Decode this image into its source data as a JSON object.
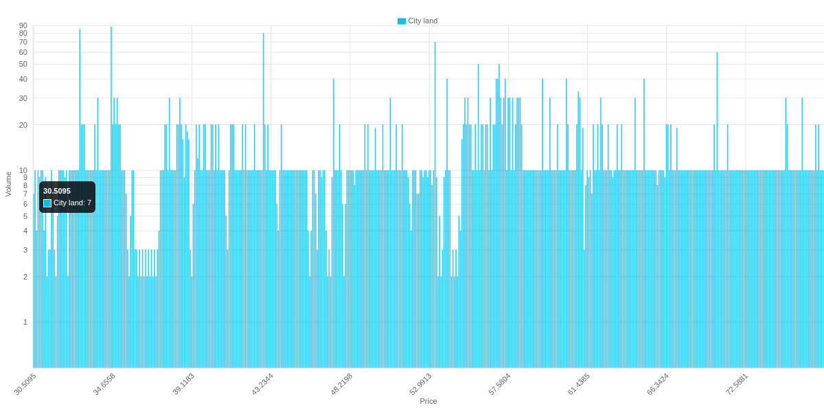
{
  "chart_data": {
    "type": "bar",
    "xlabel": "Price",
    "ylabel": "Volume",
    "log": "y",
    "grid": true,
    "legend": "top",
    "ylim": [
      0.5,
      90
    ],
    "yticks": [
      1,
      2,
      3,
      4,
      5,
      6,
      7,
      8,
      9,
      10,
      20,
      30,
      40,
      50,
      60,
      70,
      80,
      90
    ],
    "annotations": [
      {
        "text": "30.5095",
        "x": "30.5095",
        "y": 7
      },
      "City land: 7"
    ],
    "categories": [
      "30.5095",
      null,
      null,
      null,
      null,
      null,
      null,
      null,
      null,
      null,
      null,
      null,
      null,
      null,
      null,
      null,
      null,
      null,
      null,
      null,
      null,
      null,
      null,
      null,
      null,
      null,
      null,
      null,
      null,
      null,
      null,
      null,
      null,
      null,
      null,
      null,
      null,
      null,
      null,
      null,
      null,
      null,
      null,
      null,
      null,
      null,
      null,
      null,
      null,
      null,
      null,
      null,
      null,
      "34.6558",
      null,
      null,
      null,
      null,
      null,
      null,
      null,
      null,
      null,
      null,
      null,
      null,
      null,
      null,
      null,
      null,
      null,
      null,
      null,
      null,
      null,
      null,
      null,
      null,
      null,
      null,
      null,
      null,
      null,
      null,
      null,
      null,
      null,
      null,
      null,
      null,
      null,
      null,
      null,
      null,
      null,
      null,
      null,
      null,
      null,
      null,
      null,
      null,
      null,
      null,
      null,
      null,
      "39.1183",
      null,
      null,
      null,
      null,
      null,
      null,
      null,
      null,
      null,
      null,
      null,
      null,
      null,
      null,
      null,
      null,
      null,
      null,
      null,
      null,
      null,
      null,
      null,
      null,
      null,
      null,
      null,
      null,
      null,
      null,
      null,
      null,
      null,
      null,
      null,
      null,
      null,
      null,
      null,
      null,
      null,
      null,
      null,
      null,
      null,
      null,
      null,
      null,
      null,
      null,
      null,
      null,
      "43.2344",
      null,
      null,
      null,
      null,
      null,
      null,
      null,
      null,
      null,
      null,
      null,
      null,
      null,
      null,
      null,
      null,
      null,
      null,
      null,
      null,
      null,
      null,
      null,
      null,
      null,
      null,
      null,
      null,
      null,
      null,
      null,
      null,
      null,
      null,
      null,
      null,
      null,
      null,
      null,
      null,
      null,
      null,
      null,
      null,
      null,
      null,
      null,
      null,
      null,
      null,
      null,
      null,
      "48.2198",
      null,
      null,
      null,
      null,
      null,
      null,
      null,
      null,
      null,
      null,
      null,
      null,
      null,
      null,
      null,
      null,
      null,
      null,
      null,
      null,
      null,
      null,
      null,
      null,
      null,
      null,
      null,
      null,
      null,
      null,
      null,
      null,
      null,
      null,
      null,
      null,
      null,
      null,
      null,
      null,
      null,
      null,
      null,
      null,
      null,
      null,
      null,
      null,
      null,
      null,
      null,
      null,
      "52.9913",
      null,
      null,
      null,
      null,
      null,
      null,
      null,
      null,
      null,
      null,
      null,
      null,
      null,
      null,
      null,
      null,
      null,
      null,
      null,
      null,
      null,
      null,
      null,
      null,
      null,
      null,
      null,
      null,
      null,
      null,
      null,
      null,
      null,
      null,
      null,
      null,
      null,
      null,
      null,
      null,
      null,
      null,
      null,
      null,
      null,
      null,
      null,
      null,
      null,
      null,
      null,
      null,
      "57.5804",
      null,
      null,
      null,
      null,
      null,
      null,
      null,
      null,
      null,
      null,
      null,
      null,
      null,
      null,
      null,
      null,
      null,
      null,
      null,
      null,
      null,
      null,
      null,
      null,
      null,
      null,
      null,
      null,
      null,
      null,
      null,
      null,
      null,
      null,
      null,
      null,
      null,
      null,
      null,
      null,
      null,
      null,
      null,
      null,
      null,
      null,
      null,
      null,
      null,
      null,
      null,
      null,
      "61.4385",
      null,
      null,
      null,
      null,
      null,
      null,
      null,
      null,
      null,
      null,
      null,
      null,
      null,
      null,
      null,
      null,
      null,
      null,
      null,
      null,
      null,
      null,
      null,
      null,
      null,
      null,
      null,
      null,
      null,
      null,
      null,
      null,
      null,
      null,
      null,
      null,
      null,
      null,
      null,
      null,
      null,
      null,
      null,
      null,
      null,
      null,
      null,
      null,
      null,
      null,
      null,
      null,
      "66.3424",
      null,
      null,
      null,
      null,
      null,
      null,
      null,
      null,
      null,
      null,
      null,
      null,
      null,
      null,
      null,
      null,
      null,
      null,
      null,
      null,
      null,
      null,
      null,
      null,
      null,
      null,
      null,
      null,
      null,
      null,
      null,
      null,
      null,
      null,
      null,
      null,
      null,
      null,
      null,
      null,
      null,
      null,
      null,
      null,
      null,
      null,
      null,
      null,
      null,
      null,
      null,
      null,
      "72.5881",
      null,
      null,
      null,
      null,
      null,
      null,
      null,
      null,
      null,
      null,
      null,
      null,
      null,
      null,
      null,
      null,
      null,
      null,
      null,
      null,
      null,
      null,
      null,
      null,
      null,
      null,
      null,
      null,
      null,
      null,
      null,
      null,
      null,
      null,
      null,
      null,
      null,
      null,
      null,
      null,
      null,
      null,
      null,
      null,
      null,
      null,
      null,
      null,
      null,
      null,
      null,
      null
    ],
    "series": [
      {
        "name": "City land",
        "color": "#00c0ef",
        "values": [
          7,
          10,
          4,
          10,
          9,
          10,
          10,
          4,
          9,
          2,
          3,
          3,
          10,
          6,
          3,
          2,
          5,
          10,
          10,
          10,
          10,
          9,
          10,
          2,
          10,
          10,
          10,
          10,
          10,
          10,
          10,
          85,
          20,
          20,
          20,
          10,
          10,
          10,
          10,
          10,
          10,
          20,
          10,
          30,
          10,
          10,
          10,
          10,
          10,
          10,
          10,
          10,
          88,
          20,
          30,
          20,
          30,
          20,
          20,
          10,
          10,
          10,
          7,
          3,
          2,
          5,
          10,
          10,
          3,
          3,
          2,
          3,
          2,
          3,
          2,
          3,
          2,
          3,
          2,
          3,
          2,
          3,
          2,
          3,
          4,
          10,
          10,
          10,
          20,
          20,
          10,
          30,
          10,
          10,
          10,
          10,
          20,
          20,
          30,
          20,
          16,
          9,
          20,
          18,
          16,
          3,
          2,
          6,
          10,
          20,
          12,
          20,
          10,
          10,
          20,
          20,
          10,
          10,
          10,
          20,
          20,
          10,
          20,
          10,
          20,
          10,
          10,
          10,
          10,
          5,
          3,
          10,
          20,
          20,
          20,
          10,
          10,
          10,
          10,
          10,
          20,
          10,
          20,
          10,
          10,
          10,
          10,
          10,
          20,
          10,
          10,
          10,
          10,
          10,
          80,
          20,
          10,
          20,
          10,
          10,
          10,
          10,
          10,
          6,
          4,
          10,
          20,
          10,
          10,
          10,
          10,
          10,
          10,
          10,
          10,
          10,
          10,
          10,
          10,
          10,
          10,
          10,
          10,
          10,
          4,
          2,
          4,
          10,
          10,
          7,
          3,
          10,
          10,
          9,
          10,
          10,
          4,
          2,
          3,
          2,
          9,
          40,
          10,
          10,
          10,
          20,
          10,
          6,
          2,
          6,
          10,
          10,
          10,
          10,
          10,
          8,
          10,
          10,
          10,
          10,
          10,
          10,
          20,
          10,
          20,
          10,
          10,
          10,
          10,
          19,
          10,
          10,
          10,
          10,
          20,
          10,
          10,
          10,
          10,
          30,
          10,
          10,
          10,
          20,
          10,
          10,
          10,
          20,
          10,
          10,
          10,
          9,
          6,
          4,
          10,
          10,
          10,
          7,
          7,
          10,
          10,
          9,
          10,
          10,
          9,
          10,
          10,
          8,
          10,
          70,
          9,
          2,
          5,
          2,
          3,
          9,
          10,
          40,
          10,
          10,
          2,
          3,
          2,
          3,
          2,
          5,
          4,
          16,
          20,
          30,
          20,
          30,
          20,
          20,
          10,
          10,
          20,
          10,
          50,
          10,
          20,
          20,
          10,
          20,
          20,
          10,
          30,
          10,
          20,
          20,
          40,
          40,
          50,
          30,
          20,
          30,
          40,
          10,
          30,
          30,
          10,
          30,
          10,
          20,
          30,
          30,
          30,
          20,
          10,
          10,
          10,
          10,
          10,
          10,
          10,
          10,
          10,
          10,
          10,
          10,
          10,
          40,
          10,
          10,
          10,
          10,
          30,
          10,
          10,
          10,
          10,
          20,
          10,
          10,
          10,
          10,
          10,
          40,
          20,
          10,
          10,
          10,
          10,
          10,
          20,
          33,
          30,
          10,
          19,
          3,
          8,
          10,
          9,
          10,
          7,
          20,
          10,
          10,
          20,
          10,
          30,
          20,
          10,
          10,
          10,
          20,
          10,
          10,
          9,
          10,
          10,
          20,
          10,
          10,
          20,
          10,
          10,
          10,
          10,
          10,
          10,
          10,
          10,
          30,
          10,
          10,
          10,
          10,
          10,
          40,
          10,
          10,
          10,
          10,
          10,
          10,
          10,
          10,
          8,
          10,
          10,
          10,
          10,
          9,
          20,
          20,
          10,
          20,
          10,
          10,
          10,
          19,
          10,
          10,
          10,
          10,
          10,
          10,
          10,
          10,
          10,
          10,
          10,
          10,
          10,
          10,
          10,
          10,
          10,
          10,
          10,
          10,
          10,
          10,
          10,
          10,
          20,
          10,
          60,
          10,
          10,
          10,
          10,
          10,
          10,
          20,
          10,
          10,
          10,
          10,
          10,
          10,
          10,
          10,
          10,
          10,
          10,
          10,
          10,
          10,
          10,
          10,
          10,
          10,
          10,
          10,
          10,
          10,
          10,
          10,
          10,
          10,
          10,
          10,
          10,
          10,
          10,
          10,
          10,
          10,
          10,
          10,
          10,
          10,
          30,
          20,
          10,
          10,
          10,
          10,
          10,
          10,
          10,
          10,
          10,
          30,
          10,
          10,
          10,
          10,
          10,
          10,
          10,
          10,
          20,
          10,
          20,
          10,
          10,
          10
        ]
      }
    ]
  }
}
